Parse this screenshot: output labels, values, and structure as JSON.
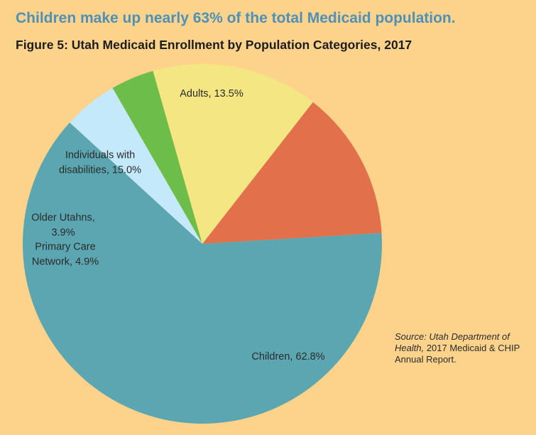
{
  "headline": "Children make up nearly 63% of the total Medicaid population.",
  "figure_title": "Figure 5: Utah Medicaid Enrollment by Population Categories, 2017",
  "source": {
    "italic": "Source: Utah Department of Health,",
    "rest": " 2017 Medicaid & CHIP Annual Report."
  },
  "colors": {
    "background": "#fdd38c",
    "headline": "#4f90b8"
  },
  "chart_data": {
    "type": "pie",
    "title": "Figure 5: Utah Medicaid Enrollment by Population Categories, 2017",
    "unit": "%",
    "slices": [
      {
        "key": "adults",
        "name": "Adults",
        "value": 13.5,
        "color": "#e2704a",
        "label_lines": [
          "Adults, 13.5%"
        ]
      },
      {
        "key": "children",
        "name": "Children",
        "value": 62.8,
        "color": "#5ba6b1",
        "label_lines": [
          "Children, 62.8%"
        ]
      },
      {
        "key": "primary-care",
        "name": "Primary Care Network",
        "value": 4.9,
        "color": "#c4e9fb",
        "label_lines": [
          "Primary Care",
          "Network, 4.9%"
        ]
      },
      {
        "key": "older-utahns",
        "name": "Older Utahns",
        "value": 3.9,
        "color": "#6dbd4a",
        "label_lines": [
          "Older Utahns,",
          "3.9%"
        ]
      },
      {
        "key": "disabilities",
        "name": "Individuals with disabilities",
        "value": 15.0,
        "color": "#f4e683",
        "label_lines": [
          "Individuals with",
          "disabilities, 15.0%"
        ]
      }
    ]
  }
}
